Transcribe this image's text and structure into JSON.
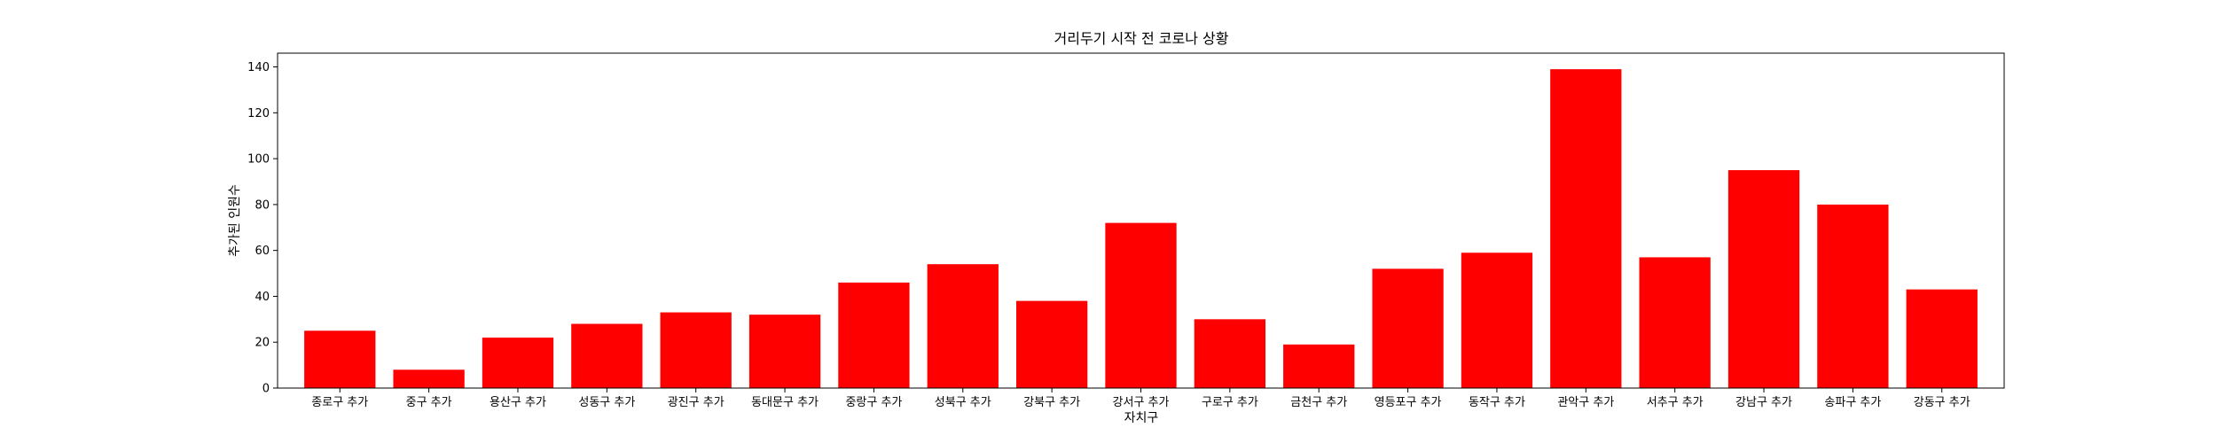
{
  "chart_data": {
    "type": "bar",
    "title": "거리두기 시작 전 코로나 상황",
    "xlabel": "자치구",
    "ylabel": "추가된 인원수",
    "categories": [
      "종로구 추가",
      "중구 추가",
      "용산구 추가",
      "성동구 추가",
      "광진구 추가",
      "동대문구 추가",
      "중랑구 추가",
      "성북구 추가",
      "강북구 추가",
      "강서구 추가",
      "구로구 추가",
      "금천구 추가",
      "영등포구 추가",
      "동작구 추가",
      "관악구 추가",
      "서추구 추가",
      "강남구 추가",
      "송파구 추가",
      "강동구 추가"
    ],
    "values": [
      25,
      8,
      22,
      28,
      33,
      32,
      46,
      54,
      38,
      72,
      30,
      19,
      52,
      59,
      139,
      57,
      95,
      80,
      43
    ],
    "ylim": [
      0,
      146
    ],
    "yticks": [
      0,
      20,
      40,
      60,
      80,
      100,
      120,
      140
    ],
    "bar_color": "#ff0000",
    "grid": false,
    "legend": "none"
  }
}
